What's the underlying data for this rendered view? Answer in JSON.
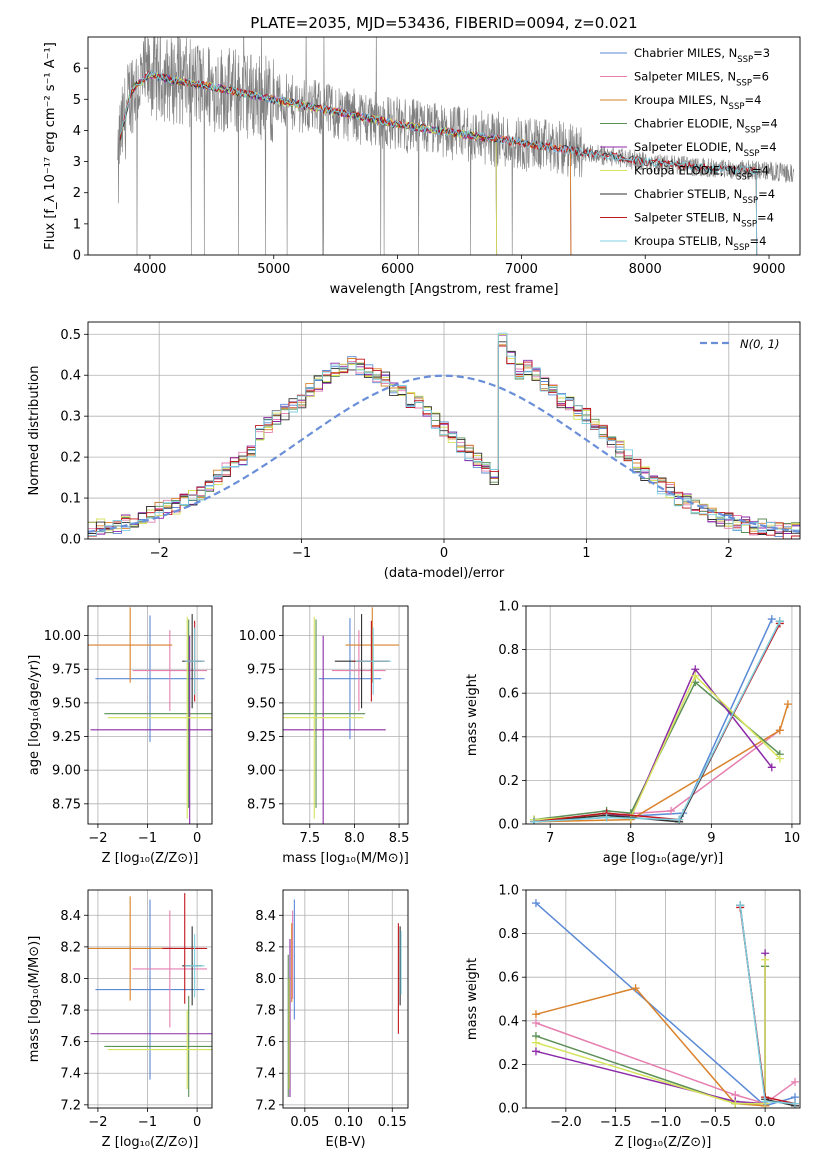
{
  "figure_title": "PLATE=2035, MJD=53436, FIBERID=0094, z=0.021",
  "colors": {
    "Chabrier MILES": "#5b8ad6",
    "Salpeter MILES": "#e57fb0",
    "Kroupa MILES": "#d9822b",
    "Chabrier ELODIE": "#5a8f55",
    "Salpeter ELODIE": "#8c2aa8",
    "Kroupa ELODIE": "#d6e35c",
    "Chabrier STELIB": "#333333",
    "Salpeter STELIB": "#c0161e",
    "Kroupa STELIB": "#7dcfe0",
    "observed": "#808080",
    "gaussian": "#6a8fd8"
  },
  "chart_data": [
    {
      "id": "spectrum",
      "type": "line",
      "xlabel": "wavelength [Angstrom, rest frame]",
      "ylabel": "Flux [f_λ 10⁻¹⁷ erg cm⁻² s⁻¹ A⁻¹]",
      "xlim": [
        3500,
        9250
      ],
      "ylim": [
        0,
        7
      ],
      "xticks": [
        4000,
        5000,
        6000,
        7000,
        8000,
        9000
      ],
      "yticks": [
        0,
        1,
        2,
        3,
        4,
        5,
        6
      ],
      "observed_range": [
        3740,
        9200
      ],
      "continuum": {
        "x": [
          3750,
          3850,
          4000,
          4200,
          4500,
          5000,
          5500,
          6000,
          6500,
          7000,
          7500,
          8000,
          8500,
          9000,
          9200
        ],
        "y": [
          3.6,
          5.3,
          5.8,
          5.6,
          5.4,
          5.0,
          4.6,
          4.2,
          3.9,
          3.6,
          3.3,
          3.0,
          2.8,
          2.7,
          2.6
        ]
      },
      "legend": [
        {
          "name": "Chabrier MILES",
          "nssp": "3",
          "end": 7400
        },
        {
          "name": "Salpeter MILES",
          "nssp": "6",
          "end": 7400
        },
        {
          "name": "Kroupa MILES",
          "nssp": "4",
          "end": 7400
        },
        {
          "name": "Chabrier ELODIE",
          "nssp": "4",
          "end": 6800
        },
        {
          "name": "Salpeter ELODIE",
          "nssp": "4",
          "end": 6800
        },
        {
          "name": "Kroupa ELODIE",
          "nssp": "4",
          "end": 6800
        },
        {
          "name": "Chabrier STELIB",
          "nssp": "4",
          "end": 8900
        },
        {
          "name": "Salpeter STELIB",
          "nssp": "4",
          "end": 8900
        },
        {
          "name": "Kroupa STELIB",
          "nssp": "4",
          "end": 8900
        }
      ]
    },
    {
      "id": "residuals",
      "type": "histogram",
      "xlabel": "(data-model)/error",
      "ylabel": "Normed distribution",
      "xlim": [
        -2.5,
        2.5
      ],
      "ylim": [
        0,
        0.53
      ],
      "xticks": [
        -2,
        -1,
        0,
        1,
        2
      ],
      "yticks": [
        0.0,
        0.1,
        0.2,
        0.3,
        0.4,
        0.5
      ],
      "legend": "N(0, 1)",
      "bin_width": 0.1,
      "bin_start": -2.5,
      "base_values": [
        0.025,
        0.03,
        0.035,
        0.03,
        0.04,
        0.045,
        0.05,
        0.06,
        0.07,
        0.075,
        0.08,
        0.09,
        0.1,
        0.11,
        0.13,
        0.15,
        0.17,
        0.19,
        0.2,
        0.22,
        0.26,
        0.28,
        0.3,
        0.31,
        0.33,
        0.34,
        0.36,
        0.38,
        0.4,
        0.41,
        0.42,
        0.43,
        0.42,
        0.41,
        0.4,
        0.39,
        0.37,
        0.36,
        0.34,
        0.33,
        0.31,
        0.29,
        0.27,
        0.25,
        0.23,
        0.21,
        0.19,
        0.17,
        0.15,
        0.49,
        0.44,
        0.41,
        0.42,
        0.4,
        0.38,
        0.36,
        0.34,
        0.33,
        0.31,
        0.3,
        0.28,
        0.26,
        0.24,
        0.22,
        0.2,
        0.18,
        0.16,
        0.15,
        0.13,
        0.12,
        0.1,
        0.09,
        0.08,
        0.07,
        0.06,
        0.05,
        0.045,
        0.04,
        0.035,
        0.03,
        0.03,
        0.025,
        0.025,
        0.02,
        0.02
      ]
    },
    {
      "id": "age_vs_Z",
      "type": "errorbar",
      "xlabel": "Z [log₁₀(Z/Z⊙)]",
      "ylabel": "age  [log₁₀(age/yr)]",
      "xlim": [
        -2.2,
        0.3
      ],
      "ylim": [
        8.6,
        10.22
      ],
      "xticks": [
        -2,
        -1,
        0
      ],
      "yticks": [
        8.75,
        9.0,
        9.25,
        9.5,
        9.75,
        10.0
      ],
      "points": [
        {
          "name": "Chabrier MILES",
          "x": -0.95,
          "y": 9.68,
          "xerr": 1.1,
          "yerr": 0.47
        },
        {
          "name": "Salpeter MILES",
          "x": -0.55,
          "y": 9.74,
          "xerr": 0.75,
          "yerr": 0.3
        },
        {
          "name": "Kroupa MILES",
          "x": -1.35,
          "y": 9.93,
          "xerr": 0.85,
          "yerr": 0.28
        },
        {
          "name": "Chabrier ELODIE",
          "x": -0.17,
          "y": 9.42,
          "xerr": 1.7,
          "yerr": 0.7
        },
        {
          "name": "Salpeter ELODIE",
          "x": -0.15,
          "y": 9.3,
          "xerr": 2.0,
          "yerr": 0.7
        },
        {
          "name": "Kroupa ELODIE",
          "x": -0.2,
          "y": 9.39,
          "xerr": 1.6,
          "yerr": 0.75
        },
        {
          "name": "Chabrier STELIB",
          "x": -0.1,
          "y": 9.81,
          "xerr": 0.2,
          "yerr": 0.35
        },
        {
          "name": "Salpeter STELIB",
          "x": -0.05,
          "y": 9.81,
          "xerr": 0.2,
          "yerr": 0.3
        },
        {
          "name": "Kroupa STELIB",
          "x": -0.05,
          "y": 9.81,
          "xerr": 0.2,
          "yerr": 0.25
        }
      ]
    },
    {
      "id": "age_vs_mass",
      "type": "errorbar",
      "xlabel": "mass [log₁₀(M/M⊙)]",
      "ylabel": "",
      "xlim": [
        7.2,
        8.6
      ],
      "ylim": [
        8.6,
        10.22
      ],
      "xticks": [
        7.5,
        8.0,
        8.5
      ],
      "yticks": [
        8.75,
        9.0,
        9.25,
        9.5,
        9.75,
        10.0
      ],
      "points": [
        {
          "name": "Chabrier MILES",
          "x": 7.95,
          "y": 9.68,
          "xerr": 0.35,
          "yerr": 0.45
        },
        {
          "name": "Salpeter MILES",
          "x": 8.05,
          "y": 9.74,
          "xerr": 0.3,
          "yerr": 0.3
        },
        {
          "name": "Kroupa MILES",
          "x": 8.2,
          "y": 9.93,
          "xerr": 0.3,
          "yerr": 0.28
        },
        {
          "name": "Chabrier ELODIE",
          "x": 7.57,
          "y": 9.42,
          "xerr": 0.55,
          "yerr": 0.7
        },
        {
          "name": "Salpeter ELODIE",
          "x": 7.65,
          "y": 9.3,
          "xerr": 0.7,
          "yerr": 0.7
        },
        {
          "name": "Kroupa ELODIE",
          "x": 7.55,
          "y": 9.39,
          "xerr": 0.55,
          "yerr": 0.75
        },
        {
          "name": "Chabrier STELIB",
          "x": 8.08,
          "y": 9.81,
          "xerr": 0.3,
          "yerr": 0.35
        },
        {
          "name": "Salpeter STELIB",
          "x": 8.19,
          "y": 9.81,
          "xerr": 0.2,
          "yerr": 0.3
        },
        {
          "name": "Kroupa STELIB",
          "x": 8.21,
          "y": 9.81,
          "xerr": 0.2,
          "yerr": 0.25
        }
      ]
    },
    {
      "id": "weight_vs_age",
      "type": "line",
      "xlabel": "age  [log₁₀(age/yr)]",
      "ylabel": "mass weight",
      "xlim": [
        6.7,
        10.1
      ],
      "ylim": [
        0,
        1.0
      ],
      "xticks": [
        7,
        8,
        9,
        10
      ],
      "yticks": [
        0.0,
        0.2,
        0.4,
        0.6,
        0.8,
        1.0
      ],
      "series": [
        {
          "name": "Chabrier MILES",
          "x": [
            6.8,
            7.7,
            8.65,
            9.75
          ],
          "y": [
            0.01,
            0.03,
            0.05,
            0.94
          ]
        },
        {
          "name": "Salpeter MILES",
          "x": [
            6.8,
            7.7,
            8.5,
            9.85
          ],
          "y": [
            0.02,
            0.04,
            0.06,
            0.43
          ]
        },
        {
          "name": "Kroupa MILES",
          "x": [
            6.8,
            8.0,
            9.85,
            9.95
          ],
          "y": [
            0.01,
            0.02,
            0.43,
            0.55
          ]
        },
        {
          "name": "Chabrier ELODIE",
          "x": [
            6.8,
            7.7,
            8.0,
            8.8,
            9.85
          ],
          "y": [
            0.02,
            0.06,
            0.05,
            0.65,
            0.32
          ]
        },
        {
          "name": "Salpeter ELODIE",
          "x": [
            6.8,
            7.7,
            8.0,
            8.8,
            9.75
          ],
          "y": [
            0.01,
            0.05,
            0.03,
            0.71,
            0.26
          ]
        },
        {
          "name": "Kroupa ELODIE",
          "x": [
            6.8,
            7.7,
            8.0,
            8.8,
            9.85
          ],
          "y": [
            0.02,
            0.04,
            0.03,
            0.68,
            0.3
          ]
        },
        {
          "name": "Chabrier STELIB",
          "x": [
            6.8,
            7.7,
            8.6,
            9.85
          ],
          "y": [
            0.01,
            0.04,
            0.01,
            0.93
          ]
        },
        {
          "name": "Salpeter STELIB",
          "x": [
            6.8,
            7.7,
            8.6,
            9.85
          ],
          "y": [
            0.01,
            0.05,
            0.02,
            0.92
          ]
        },
        {
          "name": "Kroupa STELIB",
          "x": [
            6.8,
            7.7,
            8.6,
            9.85
          ],
          "y": [
            0.01,
            0.03,
            0.02,
            0.93
          ]
        }
      ]
    },
    {
      "id": "mass_vs_Z",
      "type": "errorbar",
      "xlabel": "Z [log₁₀(Z/Z⊙)]",
      "ylabel": "mass [log₁₀(M/M⊙)]",
      "xlim": [
        -2.2,
        0.3
      ],
      "ylim": [
        7.18,
        8.56
      ],
      "xticks": [
        -2,
        -1,
        0
      ],
      "yticks": [
        7.2,
        7.4,
        7.6,
        7.8,
        8.0,
        8.2,
        8.4
      ],
      "points": [
        {
          "name": "Chabrier MILES",
          "x": -0.95,
          "y": 7.93,
          "xerr": 1.1,
          "yerr": 0.57
        },
        {
          "name": "Salpeter MILES",
          "x": -0.55,
          "y": 8.06,
          "xerr": 0.75,
          "yerr": 0.37
        },
        {
          "name": "Kroupa MILES",
          "x": -1.35,
          "y": 8.19,
          "xerr": 0.85,
          "yerr": 0.33
        },
        {
          "name": "Chabrier ELODIE",
          "x": -0.17,
          "y": 7.57,
          "xerr": 1.7,
          "yerr": 0.32
        },
        {
          "name": "Salpeter ELODIE",
          "x": -0.15,
          "y": 7.65,
          "xerr": 2.0,
          "yerr": 0.0
        },
        {
          "name": "Kroupa ELODIE",
          "x": -0.2,
          "y": 7.55,
          "xerr": 1.6,
          "yerr": 0.25
        },
        {
          "name": "Chabrier STELIB",
          "x": -0.1,
          "y": 8.08,
          "xerr": 0.2,
          "yerr": 0.25
        },
        {
          "name": "Salpeter STELIB",
          "x": -0.25,
          "y": 8.19,
          "xerr": 0.45,
          "yerr": 0.35
        },
        {
          "name": "Kroupa STELIB",
          "x": -0.05,
          "y": 8.08,
          "xerr": 0.2,
          "yerr": 0.2
        }
      ]
    },
    {
      "id": "mass_vs_ebv",
      "type": "errorbar",
      "xlabel": "E(B-V)",
      "ylabel": "",
      "xlim": [
        0.025,
        0.168
      ],
      "ylim": [
        7.18,
        8.56
      ],
      "xticks": [
        0.05,
        0.1,
        0.15
      ],
      "yticks": [
        7.2,
        7.4,
        7.6,
        7.8,
        8.0,
        8.2,
        8.4
      ],
      "points": [
        {
          "name": "Chabrier MILES",
          "x": 0.038,
          "y": 8.12,
          "xerr": 0.0,
          "yerr": 0.38
        },
        {
          "name": "Salpeter MILES",
          "x": 0.036,
          "y": 8.15,
          "xerr": 0.0,
          "yerr": 0.28
        },
        {
          "name": "Kroupa MILES",
          "x": 0.035,
          "y": 8.1,
          "xerr": 0.0,
          "yerr": 0.25
        },
        {
          "name": "Chabrier ELODIE",
          "x": 0.031,
          "y": 7.7,
          "xerr": 0.0,
          "yerr": 0.45
        },
        {
          "name": "Salpeter ELODIE",
          "x": 0.033,
          "y": 7.75,
          "xerr": 0.0,
          "yerr": 0.5
        },
        {
          "name": "Kroupa ELODIE",
          "x": 0.032,
          "y": 7.65,
          "xerr": 0.0,
          "yerr": 0.35
        },
        {
          "name": "Chabrier STELIB",
          "x": 0.159,
          "y": 8.08,
          "xerr": 0.0,
          "yerr": 0.25
        },
        {
          "name": "Salpeter STELIB",
          "x": 0.157,
          "y": 8.0,
          "xerr": 0.0,
          "yerr": 0.35
        },
        {
          "name": "Kroupa STELIB",
          "x": 0.16,
          "y": 8.1,
          "xerr": 0.0,
          "yerr": 0.2
        }
      ]
    },
    {
      "id": "weight_vs_Z",
      "type": "line",
      "xlabel": "Z [log₁₀(Z/Z⊙)]",
      "ylabel": "mass weight",
      "xlim": [
        -2.4,
        0.35
      ],
      "ylim": [
        0,
        1.0
      ],
      "xticks": [
        -2.0,
        -1.5,
        -1.0,
        -0.5,
        0.0
      ],
      "yticks": [
        0.0,
        0.2,
        0.4,
        0.6,
        0.8,
        1.0
      ],
      "series": [
        {
          "name": "Chabrier MILES",
          "x": [
            -2.3,
            0.0,
            0.3
          ],
          "y": [
            0.94,
            0.01,
            0.05
          ]
        },
        {
          "name": "Salpeter MILES",
          "x": [
            -2.3,
            -0.3,
            0.0,
            0.3
          ],
          "y": [
            0.39,
            0.06,
            0.02,
            0.12
          ]
        },
        {
          "name": "Kroupa MILES",
          "x": [
            -2.3,
            -1.3,
            -0.3,
            0.0
          ],
          "y": [
            0.43,
            0.55,
            0.02,
            0.01
          ]
        },
        {
          "name": "Chabrier ELODIE",
          "x": [
            -2.3,
            -0.3,
            0.0,
            0.0
          ],
          "y": [
            0.33,
            0.02,
            0.02,
            0.65
          ]
        },
        {
          "name": "Salpeter ELODIE",
          "x": [
            -2.3,
            -0.3,
            0.0,
            0.0
          ],
          "y": [
            0.26,
            0.03,
            0.02,
            0.71
          ]
        },
        {
          "name": "Kroupa ELODIE",
          "x": [
            -2.3,
            -0.3,
            0.0,
            0.0
          ],
          "y": [
            0.3,
            0.02,
            0.02,
            0.68
          ]
        },
        {
          "name": "Chabrier STELIB",
          "x": [
            -0.25,
            0.0,
            0.3
          ],
          "y": [
            0.93,
            0.04,
            0.01
          ]
        },
        {
          "name": "Salpeter STELIB",
          "x": [
            -0.25,
            0.0,
            0.3
          ],
          "y": [
            0.92,
            0.05,
            0.02
          ]
        },
        {
          "name": "Kroupa STELIB",
          "x": [
            -0.25,
            0.0,
            0.3
          ],
          "y": [
            0.93,
            0.03,
            0.02
          ]
        }
      ]
    }
  ]
}
